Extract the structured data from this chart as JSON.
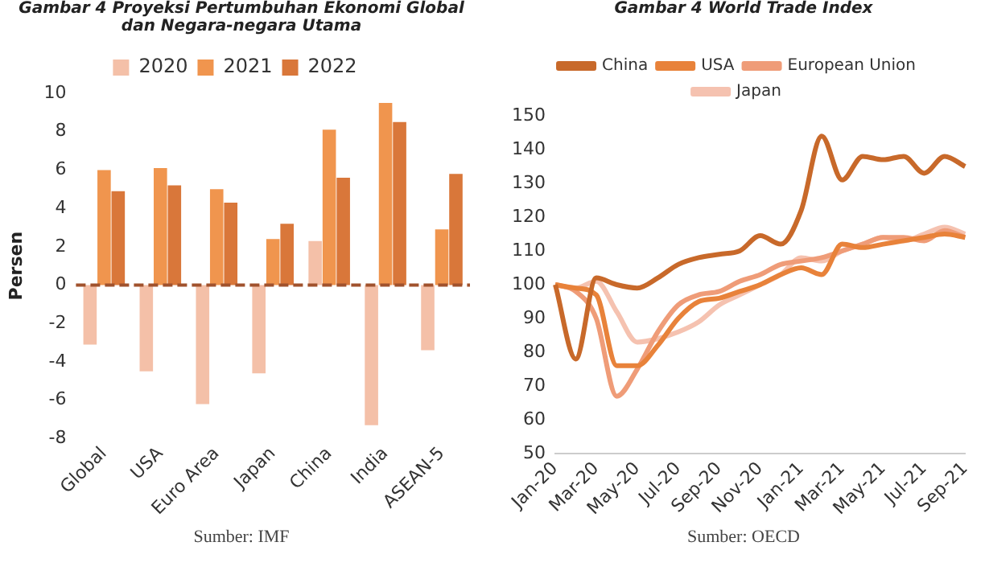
{
  "chart_data": [
    {
      "type": "bar",
      "title": "Gambar 4 Proyeksi Pertumbuhan Ekonomi Global dan Negara-negara Utama",
      "ylabel": "Persen",
      "annotations": [
        "Sumber: IMF"
      ],
      "categories": [
        "Global",
        "USA",
        "Euro Area",
        "Japan",
        "China",
        "India",
        "ASEAN-5"
      ],
      "series": [
        {
          "name": "2020",
          "color": "#f4c0a8",
          "values": [
            -3.1,
            -4.5,
            -6.2,
            -4.6,
            2.3,
            -7.3,
            -3.4
          ]
        },
        {
          "name": "2021",
          "color": "#f0954e",
          "values": [
            6.0,
            6.1,
            5.0,
            2.4,
            8.1,
            9.5,
            2.9
          ]
        },
        {
          "name": "2022",
          "color": "#d9773a",
          "values": [
            4.9,
            5.2,
            4.3,
            3.2,
            5.6,
            8.5,
            5.8
          ]
        }
      ],
      "ylim": [
        -8,
        10
      ],
      "yticks": [
        -8,
        -6,
        -4,
        -2,
        0,
        2,
        4,
        6,
        8,
        10
      ],
      "grid": false,
      "legend": "top",
      "ref_lines": [
        {
          "axis": "y",
          "value": 0,
          "color": "#a0522d",
          "line_style": "dashed"
        }
      ]
    },
    {
      "type": "line",
      "title": "Gambar 4 World Trade Index",
      "annotations": [
        "Sumber: OECD"
      ],
      "categories": [
        "Jan-20",
        null,
        "Mar-20",
        null,
        "May-20",
        null,
        "Jul-20",
        null,
        "Sep-20",
        null,
        "Nov-20",
        null,
        "Jan-21",
        null,
        "Mar-21",
        null,
        "May-21",
        null,
        "Jul-21",
        null,
        "Sep-21"
      ],
      "series": [
        {
          "name": "China",
          "color": "#c8692a",
          "values": [
            100,
            78,
            102,
            100,
            99,
            102,
            106,
            108,
            109,
            110,
            114.5,
            112,
            122,
            144,
            131,
            138,
            137,
            138,
            133,
            138,
            135
          ]
        },
        {
          "name": "USA",
          "color": "#e8823a",
          "values": [
            100,
            99,
            97,
            76,
            76,
            82,
            90,
            95,
            96,
            98,
            100,
            103,
            105,
            103,
            112,
            111,
            112,
            113,
            114,
            115,
            114
          ]
        },
        {
          "name": "European Union",
          "color": "#ef9c78",
          "values": [
            100,
            98,
            90,
            67,
            75,
            86,
            94,
            97,
            98,
            101,
            103,
            106,
            107,
            108,
            110,
            112,
            114,
            114,
            113,
            116,
            114
          ]
        },
        {
          "name": "Japan",
          "color": "#f5c2b0",
          "values": [
            100,
            99,
            101,
            92,
            83,
            84,
            86,
            89,
            94,
            97,
            100,
            103,
            108,
            107,
            110,
            112,
            114,
            113,
            115,
            117,
            115
          ]
        }
      ],
      "ylim": [
        50,
        150
      ],
      "yticks": [
        50,
        60,
        70,
        80,
        90,
        100,
        110,
        120,
        130,
        140,
        150
      ],
      "grid": false,
      "legend": "top",
      "marker": "none",
      "line_style": "solid"
    }
  ]
}
